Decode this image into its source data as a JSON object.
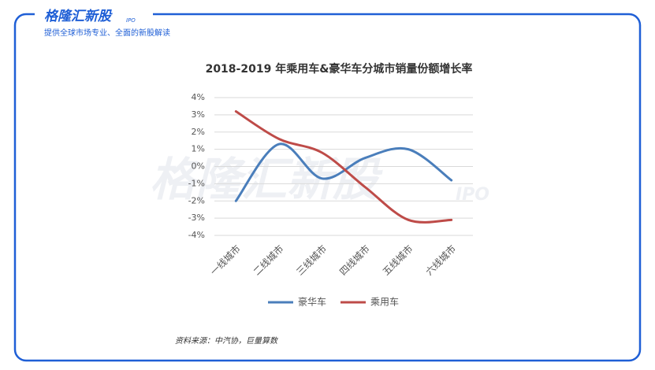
{
  "header": {
    "logo": "格隆汇新股",
    "logo_tag": "IPO",
    "subtitle": "提供全球市场专业、全面的新股解读"
  },
  "watermark": {
    "text": "格隆汇新股",
    "tag": "IPO"
  },
  "chart_data": {
    "type": "line",
    "smooth": true,
    "title": "2018-2019 年乘用车&豪华车分城市销量份额增长率",
    "categories": [
      "一线城市",
      "二线城市",
      "三线城市",
      "四线城市",
      "五线城市",
      "六线城市"
    ],
    "series": [
      {
        "name": "豪华车",
        "color": "#4a7ebb",
        "values": [
          -2.0,
          1.3,
          -0.7,
          0.5,
          1.0,
          -0.8
        ]
      },
      {
        "name": "乘用车",
        "color": "#be4b48",
        "values": [
          3.2,
          1.6,
          0.8,
          -1.2,
          -3.1,
          -3.1
        ]
      }
    ],
    "ylim": [
      -4,
      4
    ],
    "yticks": [
      {
        "value": -4,
        "label": "-4%"
      },
      {
        "value": -3,
        "label": "-3%"
      },
      {
        "value": -2,
        "label": "-2%"
      },
      {
        "value": -1,
        "label": "-1%"
      },
      {
        "value": 0,
        "label": "0%"
      },
      {
        "value": 1,
        "label": "1%"
      },
      {
        "value": 2,
        "label": "2%"
      },
      {
        "value": 3,
        "label": "3%"
      },
      {
        "value": 4,
        "label": "4%"
      }
    ],
    "grid": true,
    "legend": "bottom",
    "source": "资料来源：中汽协，巨量算数"
  }
}
